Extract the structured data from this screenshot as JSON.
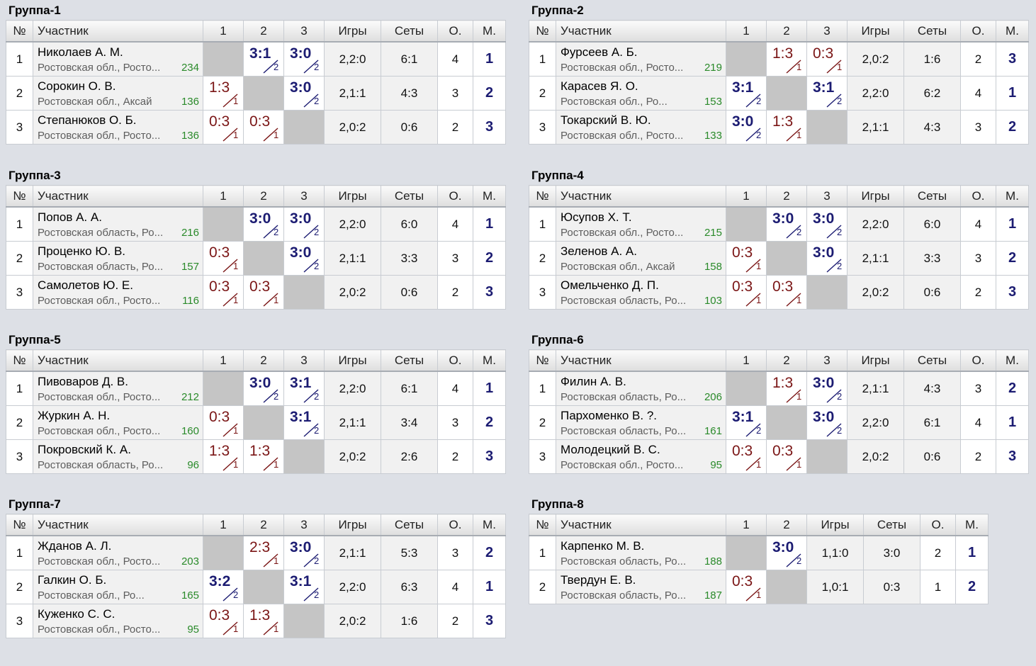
{
  "headers": {
    "num": "№",
    "participant": "Участник",
    "games": "Игры",
    "sets": "Сеты",
    "points": "О.",
    "place": "М."
  },
  "groups": [
    {
      "title": "Группа-1",
      "cols": [
        "1",
        "2",
        "3"
      ],
      "players": [
        {
          "num": "1",
          "name": "Николаев А. М.",
          "region": "Ростовская обл., Росто...",
          "rating": "234",
          "results": [
            null,
            {
              "score": "3:1",
              "sets": "2",
              "win": true
            },
            {
              "score": "3:0",
              "sets": "2",
              "win": true
            }
          ],
          "games": "2,2:0",
          "sets": "6:1",
          "points": "4",
          "place": "1"
        },
        {
          "num": "2",
          "name": "Сорокин О. В.",
          "region": "Ростовская обл., Аксай",
          "rating": "136",
          "results": [
            {
              "score": "1:3",
              "sets": "1",
              "win": false
            },
            null,
            {
              "score": "3:0",
              "sets": "2",
              "win": true
            }
          ],
          "games": "2,1:1",
          "sets": "4:3",
          "points": "3",
          "place": "2"
        },
        {
          "num": "3",
          "name": "Степанюков О. Б.",
          "region": "Ростовская обл., Росто...",
          "rating": "136",
          "results": [
            {
              "score": "0:3",
              "sets": "1",
              "win": false
            },
            {
              "score": "0:3",
              "sets": "1",
              "win": false
            },
            null
          ],
          "games": "2,0:2",
          "sets": "0:6",
          "points": "2",
          "place": "3"
        }
      ]
    },
    {
      "title": "Группа-2",
      "cols": [
        "1",
        "2",
        "3"
      ],
      "players": [
        {
          "num": "1",
          "name": "Фурсеев А. Б.",
          "region": "Ростовская обл., Росто...",
          "rating": "219",
          "results": [
            null,
            {
              "score": "1:3",
              "sets": "1",
              "win": false
            },
            {
              "score": "0:3",
              "sets": "1",
              "win": false
            }
          ],
          "games": "2,0:2",
          "sets": "1:6",
          "points": "2",
          "place": "3"
        },
        {
          "num": "2",
          "name": "Карасев Я. О.",
          "region": "Ростовская обл., Ро...",
          "rating": "153",
          "results": [
            {
              "score": "3:1",
              "sets": "2",
              "win": true
            },
            null,
            {
              "score": "3:1",
              "sets": "2",
              "win": true
            }
          ],
          "games": "2,2:0",
          "sets": "6:2",
          "points": "4",
          "place": "1"
        },
        {
          "num": "3",
          "name": "Токарский В. Ю.",
          "region": "Ростовская обл., Росто...",
          "rating": "133",
          "results": [
            {
              "score": "3:0",
              "sets": "2",
              "win": true
            },
            {
              "score": "1:3",
              "sets": "1",
              "win": false
            },
            null
          ],
          "games": "2,1:1",
          "sets": "4:3",
          "points": "3",
          "place": "2"
        }
      ]
    },
    {
      "title": "Группа-3",
      "cols": [
        "1",
        "2",
        "3"
      ],
      "players": [
        {
          "num": "1",
          "name": "Попов А. А.",
          "region": "Ростовская область, Ро...",
          "rating": "216",
          "results": [
            null,
            {
              "score": "3:0",
              "sets": "2",
              "win": true
            },
            {
              "score": "3:0",
              "sets": "2",
              "win": true
            }
          ],
          "games": "2,2:0",
          "sets": "6:0",
          "points": "4",
          "place": "1"
        },
        {
          "num": "2",
          "name": "Проценко Ю. В.",
          "region": "Ростовская область, Ро...",
          "rating": "157",
          "results": [
            {
              "score": "0:3",
              "sets": "1",
              "win": false
            },
            null,
            {
              "score": "3:0",
              "sets": "2",
              "win": true
            }
          ],
          "games": "2,1:1",
          "sets": "3:3",
          "points": "3",
          "place": "2"
        },
        {
          "num": "3",
          "name": "Самолетов Ю. Е.",
          "region": "Ростовская обл., Росто...",
          "rating": "116",
          "results": [
            {
              "score": "0:3",
              "sets": "1",
              "win": false
            },
            {
              "score": "0:3",
              "sets": "1",
              "win": false
            },
            null
          ],
          "games": "2,0:2",
          "sets": "0:6",
          "points": "2",
          "place": "3"
        }
      ]
    },
    {
      "title": "Группа-4",
      "cols": [
        "1",
        "2",
        "3"
      ],
      "players": [
        {
          "num": "1",
          "name": "Юсупов Х. Т.",
          "region": "Ростовская обл., Росто...",
          "rating": "215",
          "results": [
            null,
            {
              "score": "3:0",
              "sets": "2",
              "win": true
            },
            {
              "score": "3:0",
              "sets": "2",
              "win": true
            }
          ],
          "games": "2,2:0",
          "sets": "6:0",
          "points": "4",
          "place": "1"
        },
        {
          "num": "2",
          "name": "Зеленов А. А.",
          "region": "Ростовская обл., Аксай",
          "rating": "158",
          "results": [
            {
              "score": "0:3",
              "sets": "1",
              "win": false
            },
            null,
            {
              "score": "3:0",
              "sets": "2",
              "win": true
            }
          ],
          "games": "2,1:1",
          "sets": "3:3",
          "points": "3",
          "place": "2"
        },
        {
          "num": "3",
          "name": "Омельченко Д. П.",
          "region": "Ростовская область, Ро...",
          "rating": "103",
          "results": [
            {
              "score": "0:3",
              "sets": "1",
              "win": false
            },
            {
              "score": "0:3",
              "sets": "1",
              "win": false
            },
            null
          ],
          "games": "2,0:2",
          "sets": "0:6",
          "points": "2",
          "place": "3"
        }
      ]
    },
    {
      "title": "Группа-5",
      "cols": [
        "1",
        "2",
        "3"
      ],
      "players": [
        {
          "num": "1",
          "name": "Пивоваров Д. В.",
          "region": "Ростовская обл., Росто...",
          "rating": "212",
          "results": [
            null,
            {
              "score": "3:0",
              "sets": "2",
              "win": true
            },
            {
              "score": "3:1",
              "sets": "2",
              "win": true
            }
          ],
          "games": "2,2:0",
          "sets": "6:1",
          "points": "4",
          "place": "1"
        },
        {
          "num": "2",
          "name": "Журкин А. Н.",
          "region": "Ростовская обл., Росто...",
          "rating": "160",
          "results": [
            {
              "score": "0:3",
              "sets": "1",
              "win": false
            },
            null,
            {
              "score": "3:1",
              "sets": "2",
              "win": true
            }
          ],
          "games": "2,1:1",
          "sets": "3:4",
          "points": "3",
          "place": "2"
        },
        {
          "num": "3",
          "name": "Покровский К. А.",
          "region": "Ростовская область, Ро...",
          "rating": "96",
          "results": [
            {
              "score": "1:3",
              "sets": "1",
              "win": false
            },
            {
              "score": "1:3",
              "sets": "1",
              "win": false
            },
            null
          ],
          "games": "2,0:2",
          "sets": "2:6",
          "points": "2",
          "place": "3"
        }
      ]
    },
    {
      "title": "Группа-6",
      "cols": [
        "1",
        "2",
        "3"
      ],
      "players": [
        {
          "num": "1",
          "name": "Филин А. В.",
          "region": "Ростовская область, Ро...",
          "rating": "206",
          "results": [
            null,
            {
              "score": "1:3",
              "sets": "1",
              "win": false
            },
            {
              "score": "3:0",
              "sets": "2",
              "win": true
            }
          ],
          "games": "2,1:1",
          "sets": "4:3",
          "points": "3",
          "place": "2"
        },
        {
          "num": "2",
          "name": "Пархоменко В. ?.",
          "region": "Ростовская область, Ро...",
          "rating": "161",
          "results": [
            {
              "score": "3:1",
              "sets": "2",
              "win": true
            },
            null,
            {
              "score": "3:0",
              "sets": "2",
              "win": true
            }
          ],
          "games": "2,2:0",
          "sets": "6:1",
          "points": "4",
          "place": "1"
        },
        {
          "num": "3",
          "name": "Молодецкий В. С.",
          "region": "Ростовская обл., Росто...",
          "rating": "95",
          "results": [
            {
              "score": "0:3",
              "sets": "1",
              "win": false
            },
            {
              "score": "0:3",
              "sets": "1",
              "win": false
            },
            null
          ],
          "games": "2,0:2",
          "sets": "0:6",
          "points": "2",
          "place": "3"
        }
      ]
    },
    {
      "title": "Группа-7",
      "cols": [
        "1",
        "2",
        "3"
      ],
      "players": [
        {
          "num": "1",
          "name": "Жданов А. Л.",
          "region": "Ростовская обл., Росто...",
          "rating": "203",
          "results": [
            null,
            {
              "score": "2:3",
              "sets": "1",
              "win": false
            },
            {
              "score": "3:0",
              "sets": "2",
              "win": true
            }
          ],
          "games": "2,1:1",
          "sets": "5:3",
          "points": "3",
          "place": "2"
        },
        {
          "num": "2",
          "name": "Галкин О. Б.",
          "region": "Ростовская обл., Ро...",
          "rating": "165",
          "results": [
            {
              "score": "3:2",
              "sets": "2",
              "win": true
            },
            null,
            {
              "score": "3:1",
              "sets": "2",
              "win": true
            }
          ],
          "games": "2,2:0",
          "sets": "6:3",
          "points": "4",
          "place": "1"
        },
        {
          "num": "3",
          "name": "Куженко С. С.",
          "region": "Ростовская обл., Росто...",
          "rating": "95",
          "results": [
            {
              "score": "0:3",
              "sets": "1",
              "win": false
            },
            {
              "score": "1:3",
              "sets": "1",
              "win": false
            },
            null
          ],
          "games": "2,0:2",
          "sets": "1:6",
          "points": "2",
          "place": "3"
        }
      ]
    },
    {
      "title": "Группа-8",
      "cols": [
        "1",
        "2"
      ],
      "players": [
        {
          "num": "1",
          "name": "Карпенко М. В.",
          "region": "Ростовская область, Ро...",
          "rating": "188",
          "results": [
            null,
            {
              "score": "3:0",
              "sets": "2",
              "win": true
            }
          ],
          "games": "1,1:0",
          "sets": "3:0",
          "points": "2",
          "place": "1"
        },
        {
          "num": "2",
          "name": "Твердун Е. В.",
          "region": "Ростовская область, Ро...",
          "rating": "187",
          "results": [
            {
              "score": "0:3",
              "sets": "1",
              "win": false
            },
            null
          ],
          "games": "1,0:1",
          "sets": "0:3",
          "points": "1",
          "place": "2"
        }
      ]
    }
  ]
}
